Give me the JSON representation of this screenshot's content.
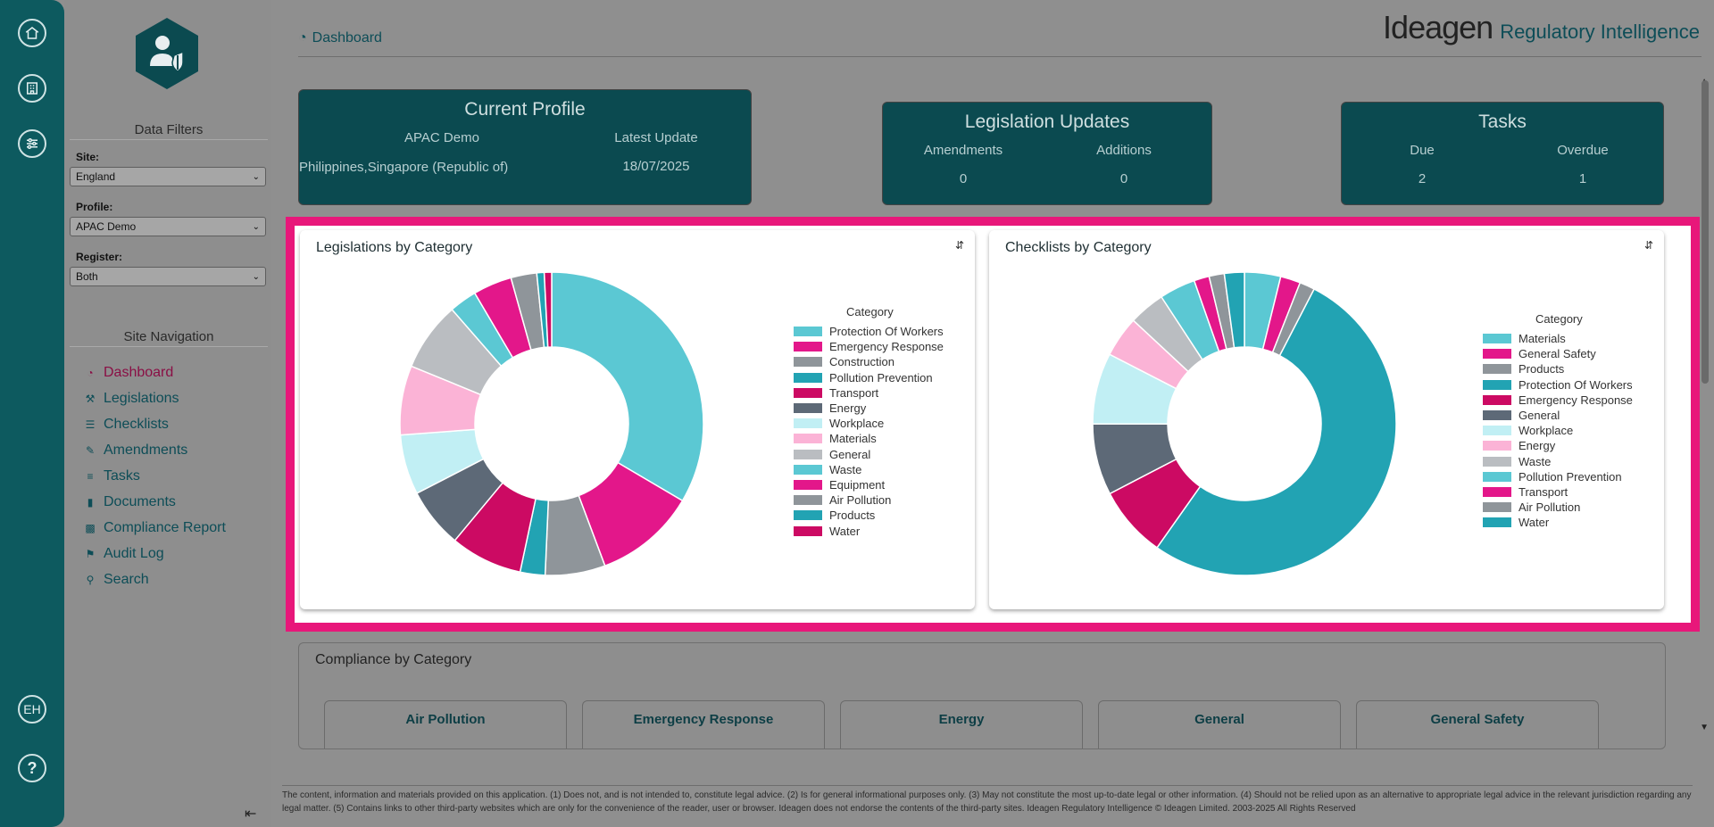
{
  "rail": {
    "user_initials": "EH",
    "help": "?"
  },
  "sidebar": {
    "data_filters_title": "Data Filters",
    "site_label": "Site:",
    "site_value": "England",
    "profile_label": "Profile:",
    "profile_value": "APAC Demo",
    "register_label": "Register:",
    "register_value": "Both",
    "site_nav_title": "Site Navigation",
    "nav": [
      {
        "label": "Dashboard",
        "icon": "tachometer-icon"
      },
      {
        "label": "Legislations",
        "icon": "gavel-icon"
      },
      {
        "label": "Checklists",
        "icon": "list-icon"
      },
      {
        "label": "Amendments",
        "icon": "edit-icon"
      },
      {
        "label": "Tasks",
        "icon": "tasks-icon"
      },
      {
        "label": "Documents",
        "icon": "file-icon"
      },
      {
        "label": "Compliance Report",
        "icon": "bar-chart-icon"
      },
      {
        "label": "Audit Log",
        "icon": "tags-icon"
      },
      {
        "label": "Search",
        "icon": "search-icon"
      }
    ]
  },
  "header": {
    "page_title": "Dashboard",
    "brand_name": "Ideagen",
    "brand_product": "Regulatory Intelligence"
  },
  "profile_card": {
    "title": "Current Profile",
    "profile_name": "APAC Demo",
    "latest_update_label": "Latest Update",
    "regions": "Philippines,Singapore (Republic of)",
    "latest_update_value": "18/07/2025"
  },
  "updates_card": {
    "title": "Legislation Updates",
    "amendments_label": "Amendments",
    "additions_label": "Additions",
    "amendments_value": "0",
    "additions_value": "0"
  },
  "tasks_card": {
    "title": "Tasks",
    "due_label": "Due",
    "overdue_label": "Overdue",
    "due_value": "2",
    "overdue_value": "1"
  },
  "chart_data": [
    {
      "type": "pie",
      "title": "Legislations by Category",
      "legend_title": "Category",
      "legend_position": "right",
      "series": [
        {
          "name": "Protection Of Workers",
          "value": 34,
          "color": "#5bc8d3"
        },
        {
          "name": "Emergency Response",
          "value": 11,
          "color": "#e3178a"
        },
        {
          "name": "Construction",
          "value": 6.5,
          "color": "#8f959a"
        },
        {
          "name": "Pollution Prevention",
          "value": 2.7,
          "color": "#22a3b3"
        },
        {
          "name": "Transport",
          "value": 7.8,
          "color": "#cc0a63"
        },
        {
          "name": "Energy",
          "value": 6.5,
          "color": "#5d6977"
        },
        {
          "name": "Workplace",
          "value": 6.5,
          "color": "#c1eff4"
        },
        {
          "name": "Materials",
          "value": 7.5,
          "color": "#fbb3d6"
        },
        {
          "name": "General",
          "value": 7.5,
          "color": "#babdc1"
        },
        {
          "name": "Waste",
          "value": 3,
          "color": "#5bc8d3"
        },
        {
          "name": "Equipment",
          "value": 4.2,
          "color": "#e3178a"
        },
        {
          "name": "Air Pollution",
          "value": 2.8,
          "color": "#8f959a"
        },
        {
          "name": "Products",
          "value": 0.8,
          "color": "#22a3b3"
        },
        {
          "name": "Water",
          "value": 0.8,
          "color": "#cc0a63"
        }
      ]
    },
    {
      "type": "pie",
      "title": "Checklists by Category",
      "legend_title": "Category",
      "legend_position": "right",
      "series": [
        {
          "name": "Materials",
          "value": 3.8,
          "color": "#5bc8d3"
        },
        {
          "name": "General Safety",
          "value": 2.1,
          "color": "#e3178a"
        },
        {
          "name": "Products",
          "value": 1.6,
          "color": "#8f959a"
        },
        {
          "name": "Protection Of Workers",
          "value": 51.5,
          "color": "#22a3b3"
        },
        {
          "name": "Emergency Response",
          "value": 7.5,
          "color": "#cc0a63"
        },
        {
          "name": "General",
          "value": 7.5,
          "color": "#5d6977"
        },
        {
          "name": "Workplace",
          "value": 7.5,
          "color": "#c1eff4"
        },
        {
          "name": "Energy",
          "value": 4.3,
          "color": "#fbb3d6"
        },
        {
          "name": "Waste",
          "value": 3.8,
          "color": "#babdc1"
        },
        {
          "name": "Pollution Prevention",
          "value": 3.8,
          "color": "#5bc8d3"
        },
        {
          "name": "Transport",
          "value": 1.6,
          "color": "#e3178a"
        },
        {
          "name": "Air Pollution",
          "value": 1.6,
          "color": "#8f959a"
        },
        {
          "name": "Water",
          "value": 2.1,
          "color": "#22a3b3"
        }
      ]
    }
  ],
  "compliance": {
    "title": "Compliance by Category",
    "boxes": [
      "Air Pollution",
      "Emergency Response",
      "Energy",
      "General",
      "General Safety"
    ]
  },
  "footer": {
    "text": "The content, information and materials provided on this application. (1) Does not, and is not intended to, constitute legal advice. (2) Is for general informational purposes only. (3) May not constitute the most up-to-date legal or other information. (4) Should not be relied upon as an alternative to appropriate legal advice in the relevant jurisdiction regarding any legal matter. (5) Contains links to other third-party websites which are only for the convenience of the reader, user or browser. Ideagen does not endorse the contents of the third-party sites. Ideagen Regulatory Intelligence © Ideagen Limited. 2003-2025 All Rights Reserved"
  }
}
